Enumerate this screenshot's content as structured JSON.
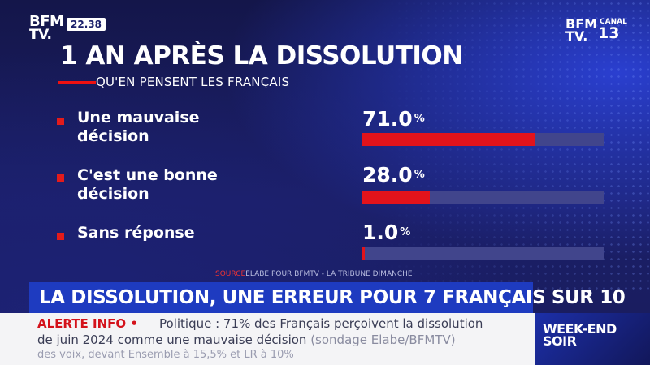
{
  "header": {
    "logo_top": "BFM",
    "logo_bottom": "TV.",
    "clock": "22.38",
    "channel_logo_top": "BFM",
    "channel_logo_bottom": "TV.",
    "channel_canal": "CANAL",
    "channel_number": "13"
  },
  "chart_data": {
    "type": "bar",
    "title": "1 AN APRÈS LA DISSOLUTION",
    "subtitle": "QU'EN PENSENT LES FRANÇAIS",
    "categories": [
      "Une mauvaise\ndécision",
      "C'est une bonne\ndécision",
      "Sans réponse"
    ],
    "values": [
      71.0,
      28.0,
      1.0
    ],
    "value_labels": [
      "71.0",
      "28.0",
      "1.0"
    ],
    "unit": "%",
    "ylim": [
      0,
      100
    ],
    "orientation": "horizontal",
    "grid": false,
    "colors": {
      "bar": "#e2131b",
      "track": "#41458c",
      "bullet": "#e31b1b"
    }
  },
  "source": {
    "label": "SOURCE",
    "text": "ELABE POUR BFMTV - LA TRIBUNE DIMANCHE"
  },
  "headline": "LA DISSOLUTION, UNE ERREUR POUR 7 FRANÇAIS SUR 10",
  "ticker": {
    "alert_label": "ALERTE INFO •",
    "line1": "Politique : 71% des Français perçoivent la dissolution",
    "line2": "de juin 2024 comme une mauvaise décision",
    "line2_paren": "(sondage Elabe/BFMTV)",
    "line3": "des voix, devant Ensemble à 15,5% et LR à 10%"
  },
  "program": {
    "line1": "WEEK-END",
    "line2": "SOIR"
  }
}
